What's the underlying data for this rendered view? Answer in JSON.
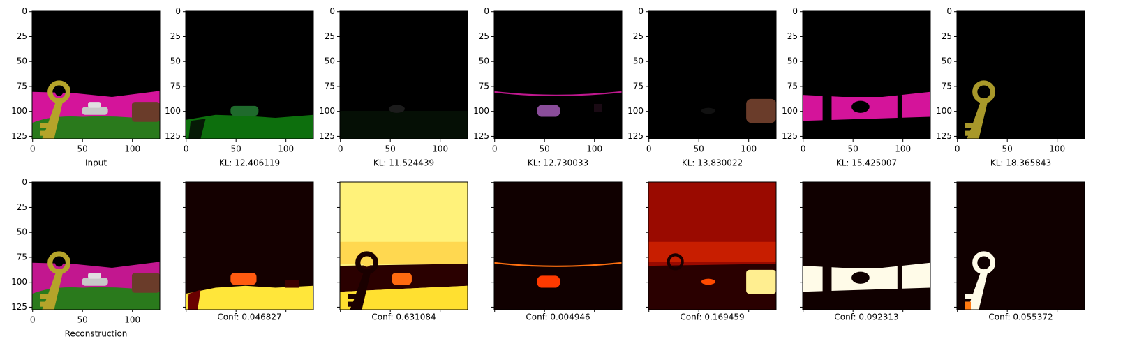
{
  "axes": {
    "xlim": [
      -0.5,
      127.5
    ],
    "ylim": [
      127.5,
      -0.5
    ],
    "xticks": [
      0,
      50,
      100
    ],
    "yticks": [
      0,
      25,
      50,
      75,
      100,
      125
    ]
  },
  "top_row": [
    {
      "caption": "Input"
    },
    {
      "caption": "KL: 12.406119"
    },
    {
      "caption": "KL: 11.524439"
    },
    {
      "caption": "KL: 12.730033"
    },
    {
      "caption": "KL: 13.830022"
    },
    {
      "caption": "KL: 15.425007"
    },
    {
      "caption": "KL: 18.365843"
    }
  ],
  "bottom_row": [
    {
      "caption": "Reconstruction"
    },
    {
      "caption": "Conf: 0.046827"
    },
    {
      "caption": "Conf: 0.631084"
    },
    {
      "caption": "Conf: 0.004946"
    },
    {
      "caption": "Conf: 0.169459"
    },
    {
      "caption": "Conf: 0.092313"
    },
    {
      "caption": "Conf: 0.055372"
    }
  ]
}
